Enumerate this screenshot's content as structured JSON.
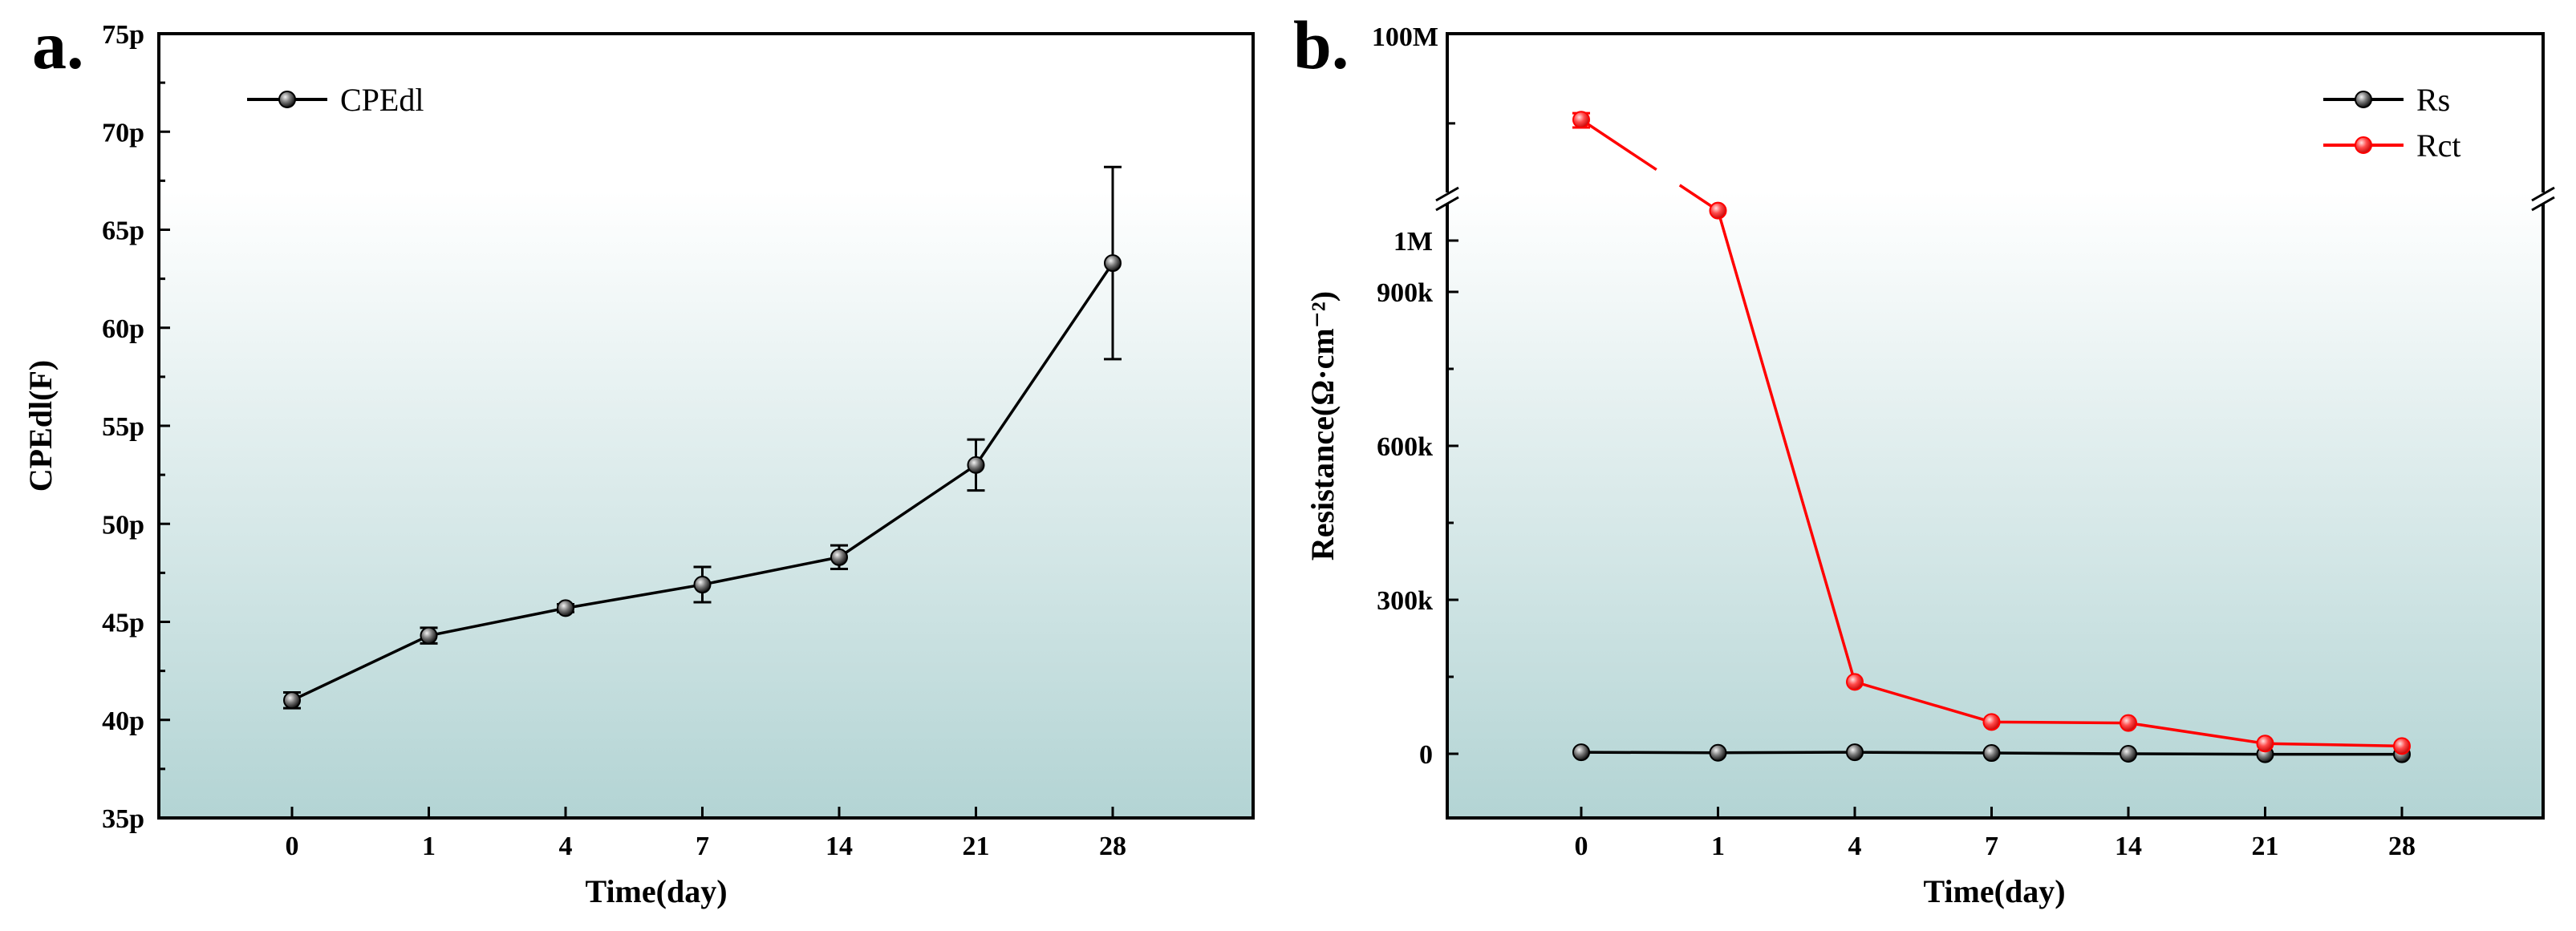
{
  "chart_data": [
    {
      "panel_label": "a.",
      "type": "line",
      "title": "",
      "xlabel": "Time(day)",
      "ylabel": "CPEdl(F)",
      "categories": [
        "0",
        "1",
        "4",
        "7",
        "14",
        "21",
        "28"
      ],
      "ylim": [
        35,
        75
      ],
      "yticks": [
        35,
        40,
        45,
        50,
        55,
        60,
        65,
        70,
        75
      ],
      "ytick_labels": [
        "35p",
        "40p",
        "45p",
        "50p",
        "55p",
        "60p",
        "65p",
        "70p",
        "75p"
      ],
      "series": [
        {
          "name": "CPEdl",
          "color": "#000000",
          "values": [
            41.0,
            44.3,
            45.7,
            46.9,
            48.3,
            53.0,
            63.3
          ],
          "errors": [
            0.4,
            0.4,
            0.2,
            0.9,
            0.6,
            1.3,
            4.9
          ]
        }
      ],
      "legend": "top-left",
      "background_gradient": [
        "#ffffff",
        "#b3d4d4"
      ]
    },
    {
      "panel_label": "b.",
      "type": "line",
      "title": "",
      "xlabel": "Time(day)",
      "ylabel": "Resistance(Ω·cm⁻²)",
      "categories": [
        "0",
        "1",
        "4",
        "7",
        "14",
        "21",
        "28"
      ],
      "ylim": [
        -150000,
        1050000
      ],
      "axis_break": {
        "upper_tick_label": "100M",
        "break_between": [
          1050000,
          100000000
        ]
      },
      "yticks": [
        0,
        300000,
        600000,
        900000,
        1000000
      ],
      "ytick_labels": [
        "0",
        "300k",
        "600k",
        "900k",
        "1M"
      ],
      "series": [
        {
          "name": "Rs",
          "color": "#000000",
          "values": [
            3000,
            2000,
            3000,
            1500,
            0,
            -1000,
            -1000
          ],
          "errors": [
            0,
            0,
            0,
            0,
            0,
            0,
            0
          ]
        },
        {
          "name": "Rct",
          "color": "#ff0000",
          "values": [
            11000000,
            1065000,
            140000,
            62000,
            60000,
            20000,
            15000
          ],
          "errors": [
            2000000,
            0,
            0,
            0,
            0,
            0,
            0
          ]
        }
      ],
      "legend": "top-right",
      "background_gradient": [
        "#ffffff",
        "#b3d4d4"
      ]
    }
  ]
}
